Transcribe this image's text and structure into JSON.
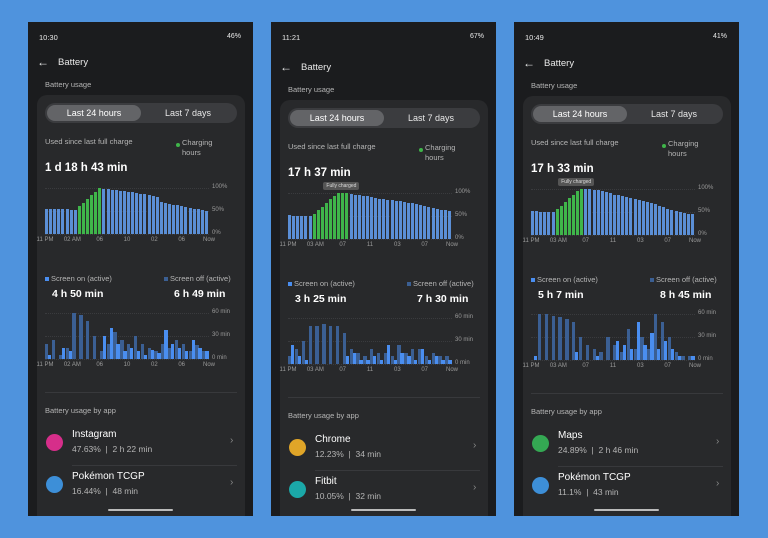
{
  "screens": [
    {
      "status_time": "10:30",
      "status_battery": "46%",
      "title": "Battery",
      "section": "Battery usage",
      "tabs": [
        "Last 24 hours",
        "Last 7 days"
      ],
      "used_label": "Used since last full charge",
      "charging_label": "Charging hours",
      "used_value": "1 d 18 h 43 min",
      "annotation": null,
      "battery_chart": {
        "type": "bar",
        "values": [
          55,
          55,
          55,
          54,
          54,
          54,
          53,
          53,
          60,
          68,
          76,
          84,
          92,
          100,
          98,
          97,
          96,
          95,
          94,
          93,
          92,
          91,
          90,
          88,
          86,
          84,
          82,
          80,
          70,
          68,
          66,
          64,
          62,
          60,
          58,
          56,
          55,
          54,
          52,
          50
        ],
        "charging": [
          8,
          9,
          10,
          11,
          12,
          13
        ],
        "color": "#5b8fd6",
        "charging_color": "#3fb54a",
        "ylim": [
          0,
          100
        ],
        "yticks": [
          {
            "value": 100,
            "label": "100%"
          },
          {
            "value": 50,
            "label": "50%"
          },
          {
            "value": 0,
            "label": "0%"
          }
        ],
        "xlabels": [
          "11 PM",
          "02 AM",
          "06",
          "10",
          "02",
          "06",
          "Now"
        ]
      },
      "screen_on_label": "Screen on (active)",
      "screen_on_value": "4 h 50 min",
      "screen_off_label": "Screen off (active)",
      "screen_off_value": "6 h 49 min",
      "usage_chart": {
        "type": "bar",
        "ylim": [
          0,
          60
        ],
        "yticks": [
          {
            "value": 60,
            "label": "60 min"
          },
          {
            "value": 30,
            "label": "30 min"
          },
          {
            "value": 0,
            "label": "0 min"
          }
        ],
        "xlabels": [
          "11 PM",
          "02 AM",
          "06",
          "10",
          "02",
          "06",
          "Now"
        ],
        "series": [
          {
            "name": "Screen on (active)",
            "color": "#4a8ef0",
            "values": [
              5,
              0,
              15,
              10,
              0,
              0,
              0,
              0,
              30,
              40,
              20,
              10,
              15,
              10,
              5,
              12,
              8,
              38,
              20,
              15,
              10,
              25,
              15,
              10
            ]
          },
          {
            "name": "Screen off (active)",
            "color": "#3b5f93",
            "values": [
              20,
              25,
              5,
              15,
              60,
              58,
              50,
              30,
              10,
              20,
              35,
              25,
              20,
              30,
              20,
              15,
              10,
              20,
              15,
              25,
              20,
              10,
              18,
              10
            ]
          }
        ]
      },
      "apps_header": "Battery usage by app",
      "apps": [
        {
          "name": "Instagram",
          "detail": "47.63%  |  2 h 22 min",
          "icon_color": "#d62e8a"
        },
        {
          "name": "Pokémon TCGP",
          "detail": "16.44%  |  48 min",
          "icon_color": "#3d8fd8"
        }
      ]
    },
    {
      "status_time": "11:21",
      "status_battery": "67%",
      "title": "Battery",
      "section": "Battery usage",
      "tabs": [
        "Last 24 hours",
        "Last 7 days"
      ],
      "used_label": "Used since last full charge",
      "charging_label": "Charging hours",
      "used_value": "17 h 37 min",
      "annotation": "Fully charged",
      "battery_chart": {
        "type": "bar",
        "values": [
          52,
          51,
          50,
          50,
          50,
          51,
          55,
          62,
          70,
          78,
          86,
          94,
          100,
          100,
          100,
          98,
          96,
          95,
          94,
          93,
          92,
          90,
          88,
          86,
          85,
          84,
          83,
          82,
          80,
          79,
          78,
          76,
          74,
          72,
          70,
          68,
          66,
          64,
          62,
          60
        ],
        "charging": [
          6,
          7,
          8,
          9,
          10,
          11,
          12,
          13,
          14
        ],
        "color": "#5b8fd6",
        "charging_color": "#3fb54a",
        "ylim": [
          0,
          100
        ],
        "yticks": [
          {
            "value": 100,
            "label": "100%"
          },
          {
            "value": 50,
            "label": "50%"
          },
          {
            "value": 0,
            "label": "0%"
          }
        ],
        "xlabels": [
          "11 PM",
          "03 AM",
          "07",
          "11",
          "03",
          "07",
          "Now"
        ]
      },
      "screen_on_label": "Screen on (active)",
      "screen_on_value": "3 h 25 min",
      "screen_off_label": "Screen off (active)",
      "screen_off_value": "7 h 30 min",
      "usage_chart": {
        "type": "bar",
        "ylim": [
          0,
          60
        ],
        "yticks": [
          {
            "value": 60,
            "label": "60 min"
          },
          {
            "value": 30,
            "label": "30 min"
          },
          {
            "value": 0,
            "label": "0 min"
          }
        ],
        "xlabels": [
          "11 PM",
          "03 AM",
          "07",
          "11",
          "03",
          "07",
          "Now"
        ],
        "series": [
          {
            "name": "Screen on (active)",
            "color": "#4a8ef0",
            "values": [
              25,
              10,
              5,
              0,
              0,
              0,
              0,
              0,
              10,
              15,
              5,
              5,
              10,
              5,
              25,
              5,
              15,
              10,
              5,
              20,
              5,
              10,
              5,
              5
            ]
          },
          {
            "name": "Screen off (active)",
            "color": "#3b5f93",
            "values": [
              10,
              20,
              30,
              50,
              50,
              52,
              50,
              50,
              40,
              20,
              15,
              10,
              20,
              15,
              15,
              10,
              25,
              15,
              20,
              20,
              10,
              15,
              10,
              10
            ]
          }
        ]
      },
      "apps_header": "Battery usage by app",
      "apps": [
        {
          "name": "Chrome",
          "detail": "12.23%  |  34 min",
          "icon_color": "#e0a528"
        },
        {
          "name": "Fitbit",
          "detail": "10.05%  |  32 min",
          "icon_color": "#1ba8a8"
        }
      ]
    },
    {
      "status_time": "10:49",
      "status_battery": "41%",
      "title": "Battery",
      "section": "Battery usage",
      "tabs": [
        "Last 24 hours",
        "Last 7 days"
      ],
      "used_label": "Used since last full charge",
      "charging_label": "Charging hours",
      "used_value": "17 h 33 min",
      "annotation": "Fully charged",
      "battery_chart": {
        "type": "bar",
        "values": [
          52,
          52,
          51,
          51,
          50,
          50,
          56,
          64,
          72,
          80,
          88,
          96,
          100,
          100,
          99,
          98,
          97,
          95,
          93,
          91,
          88,
          86,
          84,
          82,
          80,
          78,
          76,
          74,
          72,
          70,
          68,
          64,
          60,
          56,
          54,
          52,
          50,
          48,
          46,
          45
        ],
        "charging": [
          6,
          7,
          8,
          9,
          10,
          11,
          12
        ],
        "color": "#5b8fd6",
        "charging_color": "#3fb54a",
        "ylim": [
          0,
          100
        ],
        "yticks": [
          {
            "value": 100,
            "label": "100%"
          },
          {
            "value": 50,
            "label": "50%"
          },
          {
            "value": 0,
            "label": "0%"
          }
        ],
        "xlabels": [
          "11 PM",
          "03 AM",
          "07",
          "11",
          "03",
          "07",
          "Now"
        ]
      },
      "screen_on_label": "Screen on (active)",
      "screen_on_value": "5 h 7 min",
      "screen_off_label": "Screen off (active)",
      "screen_off_value": "8 h 45 min",
      "usage_chart": {
        "type": "bar",
        "ylim": [
          0,
          60
        ],
        "yticks": [
          {
            "value": 60,
            "label": "60 min"
          },
          {
            "value": 30,
            "label": "30 min"
          },
          {
            "value": 0,
            "label": "0 min"
          }
        ],
        "xlabels": [
          "11 PM",
          "03 AM",
          "07",
          "11",
          "03",
          "07",
          "Now"
        ],
        "series": [
          {
            "name": "Screen on (active)",
            "color": "#4a8ef0",
            "values": [
              5,
              0,
              0,
              0,
              0,
              0,
              10,
              0,
              0,
              5,
              0,
              0,
              25,
              20,
              15,
              50,
              20,
              35,
              15,
              25,
              15,
              5,
              0,
              5
            ]
          },
          {
            "name": "Screen off (active)",
            "color": "#3b5f93",
            "values": [
              0,
              60,
              60,
              58,
              56,
              54,
              50,
              30,
              20,
              15,
              10,
              30,
              20,
              10,
              40,
              15,
              30,
              15,
              60,
              50,
              30,
              10,
              5,
              5
            ]
          }
        ]
      },
      "apps_header": "Battery usage by app",
      "apps": [
        {
          "name": "Maps",
          "detail": "24.89%  |  2 h 46 min",
          "icon_color": "#34a853"
        },
        {
          "name": "Pokémon TCGP",
          "detail": "11.1%  |  43 min",
          "icon_color": "#3d8fd8"
        }
      ]
    }
  ]
}
